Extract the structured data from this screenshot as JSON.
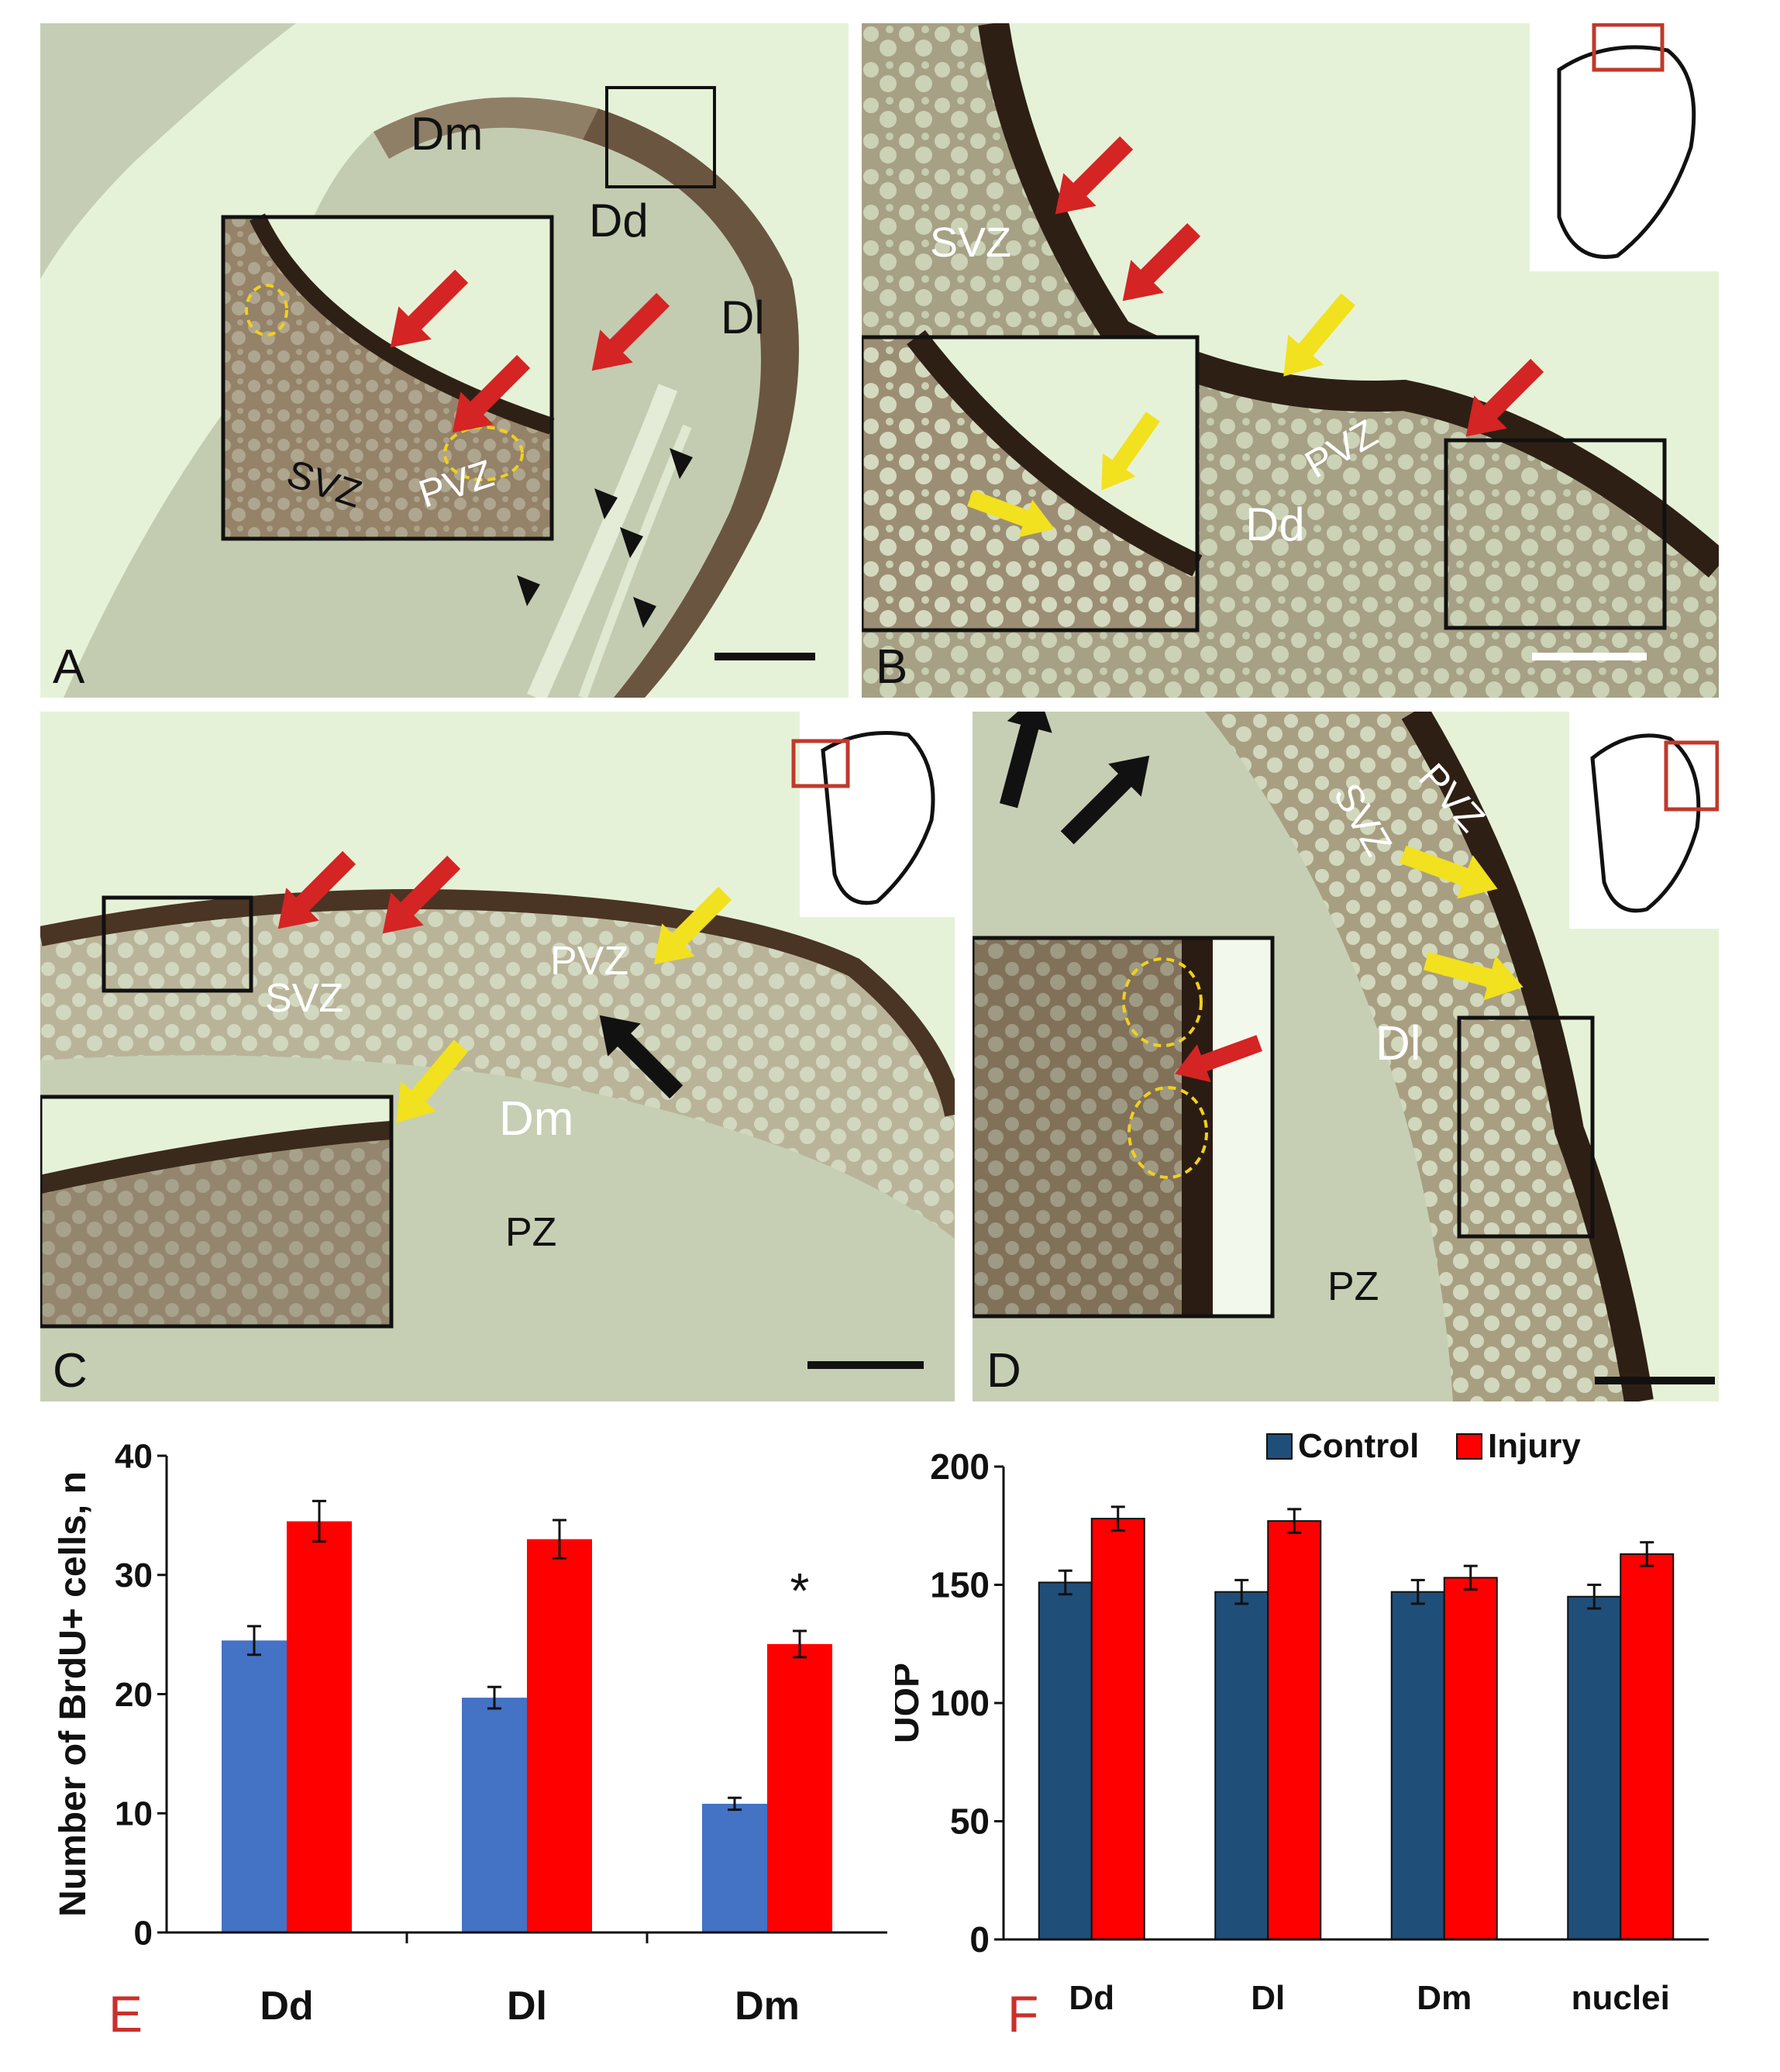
{
  "panels": {
    "A": {
      "label": "A",
      "regions": {
        "dm": "Dm",
        "dd": "Dd",
        "dl": "Dl",
        "svz": "SVZ",
        "pvz": "PVZ"
      }
    },
    "B": {
      "label": "B",
      "regions": {
        "svz": "SVZ",
        "pvz": "PVZ",
        "dd": "Dd"
      }
    },
    "C": {
      "label": "C",
      "regions": {
        "svz": "SVZ",
        "pvz": "PVZ",
        "dm": "Dm",
        "pz": "PZ"
      }
    },
    "D": {
      "label": "D",
      "regions": {
        "pvz": "PVZ",
        "svz": "SVZ",
        "dl": "Dl",
        "pz": "PZ"
      }
    }
  },
  "colors": {
    "tissue": "#c4cfb2",
    "background": "#e6f2d8",
    "stain": "#3d2a1e",
    "red_arrow": "#d42424",
    "yellow_arrow": "#f2e11e",
    "black_arrow": "#111111",
    "circle": "#f0d020",
    "inset_box": "#c0392b"
  },
  "charts": {
    "E": {
      "figure_label": "E",
      "chart_data": {
        "type": "bar",
        "categories": [
          "Dd",
          "Dl",
          "Dm"
        ],
        "series": [
          {
            "name": "Control",
            "color": "#4472c4",
            "values": [
              24.5,
              19.7,
              10.8
            ],
            "errors": [
              1.2,
              0.9,
              0.5
            ]
          },
          {
            "name": "Injury",
            "color": "#ff0000",
            "values": [
              34.5,
              33.0,
              24.2
            ],
            "errors": [
              1.7,
              1.6,
              1.1
            ]
          }
        ],
        "ylabel": "Number of BrdU+ cells, n",
        "ylim": [
          0,
          40
        ],
        "yticks": [
          0,
          10,
          20,
          30,
          40
        ],
        "annotation": "*",
        "annotation_category": "Dm",
        "legend": "none"
      }
    },
    "F": {
      "figure_label": "F",
      "chart_data": {
        "type": "bar",
        "categories": [
          "Dd",
          "Dl",
          "Dm",
          "nuclei"
        ],
        "series": [
          {
            "name": "Control",
            "color": "#1f4e79",
            "values": [
              151,
              147,
              147,
              145
            ],
            "errors": [
              5,
              5,
              5,
              5
            ]
          },
          {
            "name": "Injury",
            "color": "#ff0000",
            "values": [
              178,
              177,
              153,
              163
            ],
            "errors": [
              5,
              5,
              5,
              5
            ]
          }
        ],
        "ylabel": "UOP",
        "ylim": [
          0,
          200
        ],
        "yticks": [
          0,
          50,
          100,
          150,
          200
        ],
        "legend": "top"
      }
    }
  }
}
